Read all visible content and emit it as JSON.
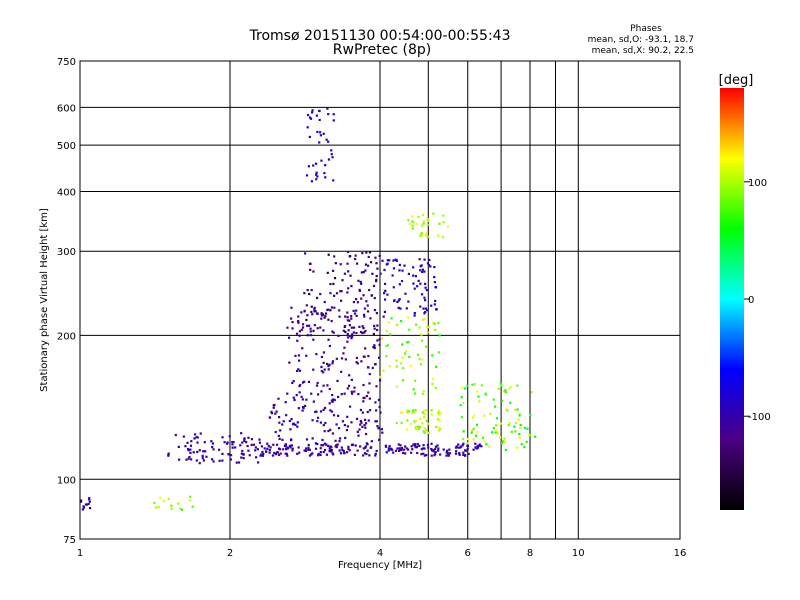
{
  "header": {
    "title": "Tromsø 20151130 00:54:00-00:55:43",
    "subtitle": "RwPretec (8p)"
  },
  "stats": {
    "heading": "Phases",
    "line_o": "mean, sd,O: -93.1, 18.7",
    "line_x": "mean, sd,X:  90.2, 22.5"
  },
  "colorbar": {
    "label": "[deg]",
    "ticks": [
      "100",
      "0",
      "-100"
    ],
    "tick_values": [
      100,
      0,
      -100
    ],
    "range": [
      -180,
      180
    ],
    "colors": [
      "#000000",
      "#4b0082",
      "#0000ff",
      "#00ffff",
      "#00ff00",
      "#ffff00",
      "#ff0000"
    ]
  },
  "chart_data": {
    "type": "scatter",
    "xlabel": "Frequency [MHz]",
    "ylabel": "Stationary phase Virtual Height [km]",
    "xscale": "log2",
    "yscale": "log",
    "xlim": [
      1,
      16
    ],
    "ylim": [
      75,
      750
    ],
    "xticks": [
      1,
      2,
      4,
      6,
      8,
      10,
      16
    ],
    "xtick_labels": [
      "1",
      "2",
      "4",
      "6",
      "8",
      "10",
      "16"
    ],
    "yticks": [
      75,
      100,
      200,
      300,
      400,
      500,
      600,
      750
    ],
    "ytick_labels": [
      "75",
      "100",
      "200",
      "300",
      "400",
      "500",
      "600",
      "750"
    ],
    "minor_xgrid": [
      5,
      7,
      9
    ],
    "grid": true,
    "point_color_encodes": "phase [deg]",
    "series": [
      {
        "name": "O",
        "clusters": [
          {
            "f": [
              1.5,
              2.3
            ],
            "h": [
              108,
              125
            ],
            "n": 90,
            "phase": [
              -120,
              -90
            ]
          },
          {
            "f": [
              2.3,
              6.4
            ],
            "h": [
              112,
              119
            ],
            "n": 220,
            "phase": [
              -120,
              -85
            ]
          },
          {
            "f": [
              2.4,
              4.1
            ],
            "h": [
              120,
              150
            ],
            "n": 120,
            "phase": [
              -130,
              -80
            ]
          },
          {
            "f": [
              2.6,
              4.0
            ],
            "h": [
              150,
              230
            ],
            "n": 160,
            "phase": [
              -130,
              -90
            ]
          },
          {
            "f": [
              2.8,
              4.1
            ],
            "h": [
              200,
              300
            ],
            "n": 120,
            "phase": [
              -150,
              -95
            ]
          },
          {
            "f": [
              2.85,
              3.25
            ],
            "h": [
              420,
              600
            ],
            "n": 40,
            "phase": [
              -110,
              -70
            ]
          },
          {
            "f": [
              4.0,
              5.2
            ],
            "h": [
              220,
              290
            ],
            "n": 80,
            "phase": [
              -110,
              -80
            ]
          },
          {
            "f": [
              1.0,
              1.05
            ],
            "h": [
              86,
              92
            ],
            "n": 12,
            "phase": [
              -100,
              -80
            ]
          }
        ]
      },
      {
        "name": "X",
        "clusters": [
          {
            "f": [
              4.0,
              5.3
            ],
            "h": [
              150,
              220
            ],
            "n": 60,
            "phase": [
              60,
              130
            ]
          },
          {
            "f": [
              4.3,
              5.3
            ],
            "h": [
              125,
              140
            ],
            "n": 50,
            "phase": [
              80,
              130
            ]
          },
          {
            "f": [
              4.5,
              5.5
            ],
            "h": [
              320,
              360
            ],
            "n": 30,
            "phase": [
              80,
              120
            ]
          },
          {
            "f": [
              5.8,
              8.2
            ],
            "h": [
              115,
              160
            ],
            "n": 90,
            "phase": [
              40,
              130
            ]
          },
          {
            "f": [
              1.4,
              1.7
            ],
            "h": [
              85,
              92
            ],
            "n": 14,
            "phase": [
              70,
              120
            ]
          }
        ]
      }
    ]
  }
}
